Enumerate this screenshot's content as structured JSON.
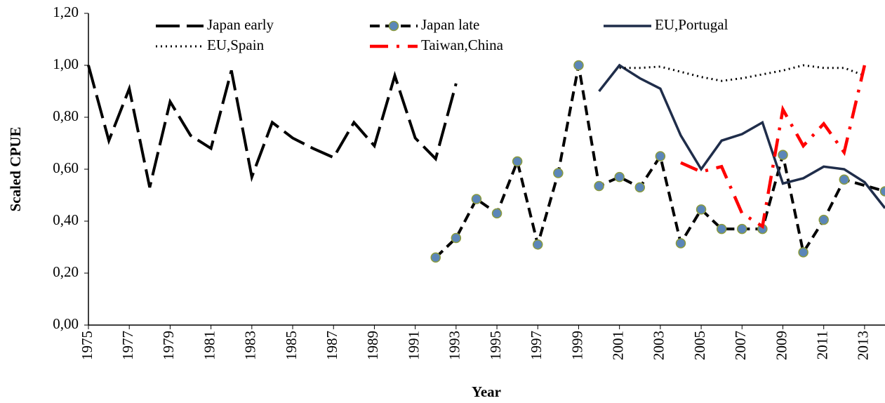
{
  "chart_data": {
    "type": "line",
    "x_label": "Year",
    "y_label": "Scaled CPUE",
    "xlim": [
      1975,
      2014
    ],
    "xticks": [
      1975,
      1977,
      1979,
      1981,
      1983,
      1985,
      1987,
      1989,
      1991,
      1993,
      1995,
      1997,
      1999,
      2001,
      2003,
      2005,
      2007,
      2009,
      2011,
      2013
    ],
    "ylim": [
      0,
      1.2
    ],
    "yticks": [
      {
        "value": 0,
        "label": "0,00"
      },
      {
        "value": 0.2,
        "label": "0,20"
      },
      {
        "value": 0.4,
        "label": "0,40"
      },
      {
        "value": 0.6,
        "label": "0,60"
      },
      {
        "value": 0.8,
        "label": "0,80"
      },
      {
        "value": 1.0,
        "label": "1,00"
      },
      {
        "value": 1.2,
        "label": "1,20"
      }
    ],
    "legend": "top",
    "series": [
      {
        "name": "Japan early",
        "color": "#000000",
        "dash": "long",
        "marker": false,
        "x": [
          1975,
          1976,
          1977,
          1978,
          1979,
          1980,
          1981,
          1982,
          1983,
          1984,
          1985,
          1986,
          1987,
          1988,
          1989,
          1990,
          1991,
          1992,
          1993
        ],
        "values": [
          1.0,
          0.71,
          0.91,
          0.53,
          0.86,
          0.73,
          0.68,
          0.98,
          0.57,
          0.78,
          0.72,
          0.68,
          0.645,
          0.78,
          0.69,
          0.96,
          0.72,
          0.64,
          0.93
        ]
      },
      {
        "name": "Japan late",
        "color": "#000000",
        "dash": "short",
        "marker": true,
        "marker_color": "#5b86b8",
        "x": [
          1992,
          1993,
          1994,
          1995,
          1996,
          1997,
          1998,
          1999,
          2000,
          2001,
          2002,
          2003,
          2004,
          2005,
          2006,
          2007,
          2008,
          2009,
          2010,
          2011,
          2012,
          2014
        ],
        "values": [
          0.26,
          0.335,
          0.485,
          0.43,
          0.63,
          0.31,
          0.585,
          1.0,
          0.535,
          0.57,
          0.53,
          0.65,
          0.315,
          0.445,
          0.37,
          0.37,
          0.37,
          0.655,
          0.28,
          0.405,
          0.56,
          0.515
        ]
      },
      {
        "name": "EU,Portugal",
        "color": "#1f2d4a",
        "dash": "solid",
        "marker": false,
        "x": [
          2000,
          2001,
          2002,
          2003,
          2004,
          2005,
          2006,
          2007,
          2008,
          2009,
          2010,
          2011,
          2012,
          2013,
          2014
        ],
        "values": [
          0.9,
          1.0,
          0.95,
          0.91,
          0.73,
          0.6,
          0.71,
          0.735,
          0.78,
          0.545,
          0.565,
          0.61,
          0.6,
          0.55,
          0.45
        ]
      },
      {
        "name": "EU,Spain",
        "color": "#000000",
        "dash": "dot",
        "marker": false,
        "x": [
          2001,
          2002,
          2003,
          2004,
          2005,
          2006,
          2007,
          2008,
          2009,
          2010,
          2011,
          2012,
          2013
        ],
        "values": [
          0.99,
          0.99,
          0.995,
          0.975,
          0.955,
          0.94,
          0.95,
          0.965,
          0.98,
          1.0,
          0.99,
          0.99,
          0.96
        ]
      },
      {
        "name": "Taiwan,China",
        "color": "#ff0000",
        "dash": "dashdot",
        "marker": false,
        "x": [
          2004,
          2005,
          2006,
          2007,
          2008,
          2009,
          2010,
          2011,
          2012,
          2013
        ],
        "values": [
          0.625,
          0.59,
          0.61,
          0.43,
          0.38,
          0.83,
          0.69,
          0.775,
          0.665,
          1.0
        ]
      }
    ]
  }
}
